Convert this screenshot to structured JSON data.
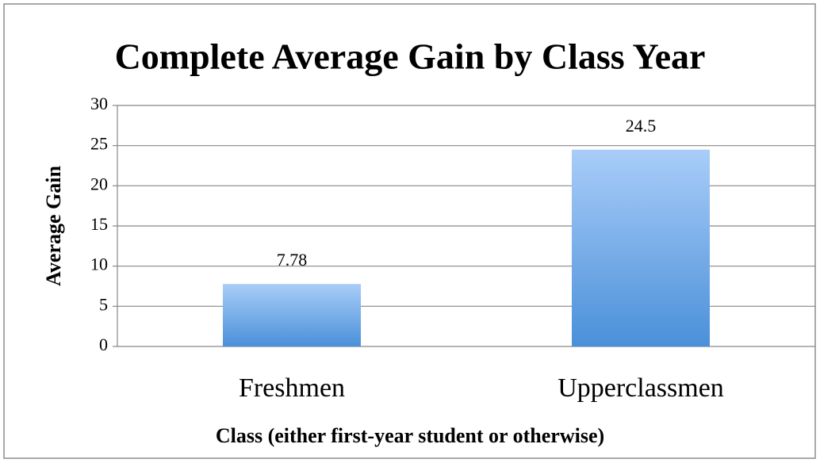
{
  "chart_data": {
    "type": "bar",
    "title": "Complete Average Gain by Class Year",
    "x_label": "Class (either first-year student or otherwise)",
    "y_label": "Average Gain",
    "categories": [
      "Freshmen",
      "Upperclassmen"
    ],
    "values": [
      7.78,
      24.5
    ],
    "color": "#4a90d9",
    "ylim": [
      0,
      30
    ],
    "yticks": [
      0,
      5,
      10,
      15,
      20,
      25,
      30
    ],
    "grid": true,
    "data_labels": true
  }
}
